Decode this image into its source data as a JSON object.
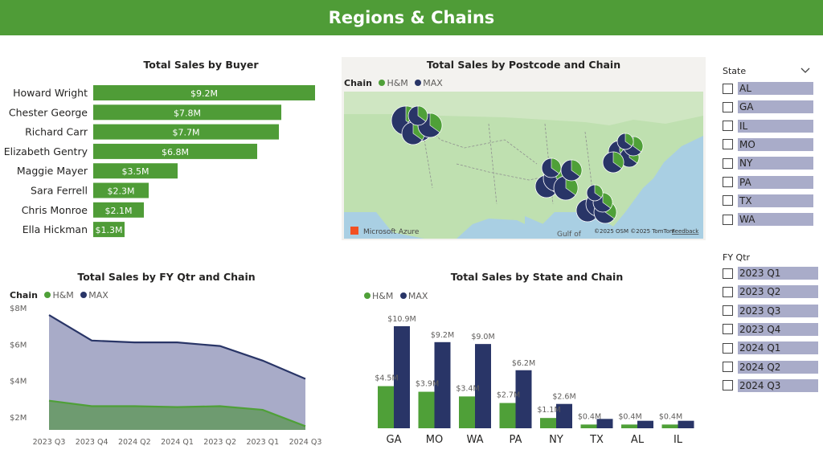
{
  "banner": {
    "title": "Regions & Chains"
  },
  "colors": {
    "brand": "#4f9c37",
    "hm": "#4fa038",
    "max": "#293567",
    "slicer_highlight": "#a9acc9",
    "area_max": "#a8abc8",
    "area_hm": "#6e9b70"
  },
  "buyer_chart": {
    "title": "Total Sales by Buyer",
    "chart_data": {
      "type": "bar",
      "orientation": "horizontal",
      "categories": [
        "Howard Wright",
        "Chester George",
        "Richard Carr",
        "Elizabeth Gentry",
        "Maggie Mayer",
        "Sara Ferrell",
        "Chris Monroe",
        "Ella Hickman"
      ],
      "values": [
        9.2,
        7.8,
        7.7,
        6.8,
        3.5,
        2.3,
        2.1,
        1.3
      ],
      "labels": [
        "$9.2M",
        "$7.8M",
        "$7.7M",
        "$6.8M",
        "$3.5M",
        "$2.3M",
        "$2.1M",
        "$1.3M"
      ],
      "unit": "$M",
      "xlim": [
        0,
        9.2
      ]
    }
  },
  "map": {
    "title": "Total Sales by Postcode and Chain",
    "legend_title": "Chain",
    "legend": [
      "H&M",
      "MAX"
    ],
    "logo_text": "Microsoft Azure",
    "attribution": "©2025 OSM  ©2025 TomTom",
    "feedback": "Feedback",
    "gulf_label": "Gulf of"
  },
  "qtr_chart": {
    "title": "Total Sales by FY Qtr and Chain",
    "legend_title": "Chain",
    "legend": [
      "H&M",
      "MAX"
    ],
    "chart_data": {
      "type": "area",
      "categories": [
        "2023 Q3",
        "2023 Q4",
        "2024 Q2",
        "2024 Q1",
        "2023 Q2",
        "2023 Q1",
        "2024 Q3"
      ],
      "series": [
        {
          "name": "MAX",
          "values": [
            7.6,
            6.2,
            6.1,
            6.1,
            5.9,
            5.1,
            4.1
          ]
        },
        {
          "name": "H&M",
          "values": [
            2.9,
            2.6,
            2.6,
            2.55,
            2.6,
            2.4,
            1.5
          ]
        }
      ],
      "yticks": [
        2,
        4,
        6,
        8
      ],
      "ytick_labels": [
        "$2M",
        "$4M",
        "$6M",
        "$8M"
      ],
      "ylim": [
        1.3,
        8
      ]
    }
  },
  "state_chart": {
    "title": "Total Sales by State and Chain",
    "legend": [
      "H&M",
      "MAX"
    ],
    "chart_data": {
      "type": "bar",
      "categories": [
        "GA",
        "MO",
        "WA",
        "PA",
        "NY",
        "TX",
        "AL",
        "IL"
      ],
      "series": [
        {
          "name": "H&M",
          "values": [
            4.5,
            3.9,
            3.4,
            2.7,
            1.1,
            0.4,
            0.4,
            0.4
          ],
          "labels": [
            "$4.5M",
            "$3.9M",
            "$3.4M",
            "$2.7M",
            "$1.1M",
            "$0.4M",
            "$0.4M",
            "$0.4M"
          ]
        },
        {
          "name": "MAX",
          "values": [
            10.9,
            9.2,
            9.0,
            6.2,
            2.6,
            1.0,
            0.8,
            0.8
          ],
          "labels": [
            "$10.9M",
            "$9.2M",
            "$9.0M",
            "$6.2M",
            "$2.6M",
            "",
            "",
            ""
          ]
        }
      ],
      "ylim": [
        0,
        10.9
      ]
    }
  },
  "state_slicer": {
    "title": "State",
    "items": [
      "AL",
      "GA",
      "IL",
      "MO",
      "NY",
      "PA",
      "TX",
      "WA"
    ]
  },
  "qtr_slicer": {
    "title": "FY Qtr",
    "items": [
      "2023 Q1",
      "2023 Q2",
      "2023 Q3",
      "2023 Q4",
      "2024 Q1",
      "2024 Q2",
      "2024 Q3"
    ]
  }
}
